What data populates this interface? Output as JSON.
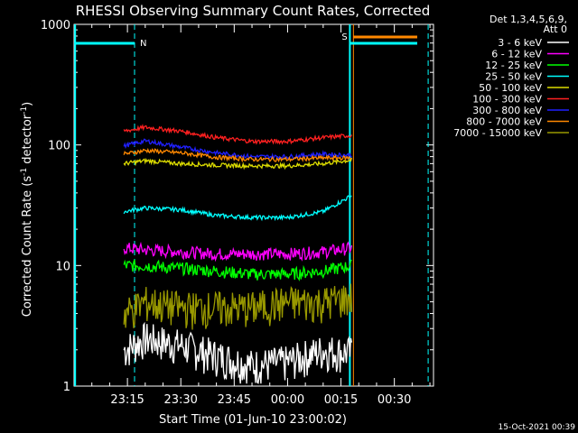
{
  "chart_data": {
    "type": "line",
    "title": "RHESSI Observing Summary Count Rates, Corrected",
    "xlabel": "Start Time (01-Jun-10 23:00:02)",
    "ylabel": "Corrected Count Rate (s⁻¹ detector⁻¹)",
    "ylabel_base": "Corrected Count Rate (s",
    "ylabel_exp1": "-1",
    "ylabel_mid": " detector",
    "ylabel_exp2": "-1",
    "ylabel_end": ")",
    "y_scale": "log",
    "ylim": [
      1,
      1000
    ],
    "xlim_min": [
      0,
      101
    ],
    "xticks": [
      {
        "min": 15,
        "label": "23:15"
      },
      {
        "min": 30,
        "label": "23:30"
      },
      {
        "min": 45,
        "label": "23:45"
      },
      {
        "min": 60,
        "label": "00:00"
      },
      {
        "min": 75,
        "label": "00:15"
      },
      {
        "min": 90,
        "label": "00:30"
      }
    ],
    "yticks": [
      {
        "value": 1,
        "label": "1"
      },
      {
        "value": 10,
        "label": "10"
      },
      {
        "value": 100,
        "label": "100"
      },
      {
        "value": 1000,
        "label": "1000"
      }
    ],
    "legend_header": [
      "Det 1,3,4,5,6,9,",
      "Att 0"
    ],
    "legend_placement": "right",
    "series": [
      {
        "name": "3 - 6 keV",
        "color": "#ffffff",
        "values": [
          2,
          2.5,
          2.2,
          1.8,
          1.5,
          1.6,
          2.0,
          1.9
        ]
      },
      {
        "name": "6 - 12 keV",
        "color": "#ff00ff",
        "values": [
          14,
          13.5,
          13,
          12.5,
          12.5,
          12.5,
          13,
          14
        ]
      },
      {
        "name": "12 - 25 keV",
        "color": "#00ff00",
        "values": [
          10,
          10,
          9.5,
          9,
          8.5,
          8.5,
          9,
          10
        ]
      },
      {
        "name": "25 - 50 keV",
        "color": "#00ffff",
        "values": [
          28,
          30,
          29,
          26,
          25,
          25,
          28,
          38
        ]
      },
      {
        "name": "50 - 100 keV",
        "color": "#dddd00",
        "values": [
          70,
          74,
          70,
          68,
          67,
          67,
          70,
          75
        ]
      },
      {
        "name": "100 - 300 keV",
        "color": "#ff2020",
        "values": [
          130,
          140,
          130,
          115,
          107,
          107,
          115,
          120
        ]
      },
      {
        "name": "300 - 800 keV",
        "color": "#2020ff",
        "values": [
          98,
          108,
          96,
          86,
          80,
          80,
          84,
          82
        ]
      },
      {
        "name": "800 - 7000 keV",
        "color": "#ff8800",
        "values": [
          84,
          90,
          86,
          79,
          76,
          76,
          78,
          78
        ]
      },
      {
        "name": "7000 - 15000 keV",
        "color": "#999900",
        "values": [
          4,
          5,
          4.5,
          4.5,
          4.5,
          5,
          5,
          5.5
        ]
      }
    ],
    "series_x_min": [
      14,
      20,
      30,
      40,
      50,
      60,
      70,
      78
    ],
    "night_marker": "N",
    "saa_marker": "S",
    "timestamp": "15-Oct-2021 00:39"
  }
}
